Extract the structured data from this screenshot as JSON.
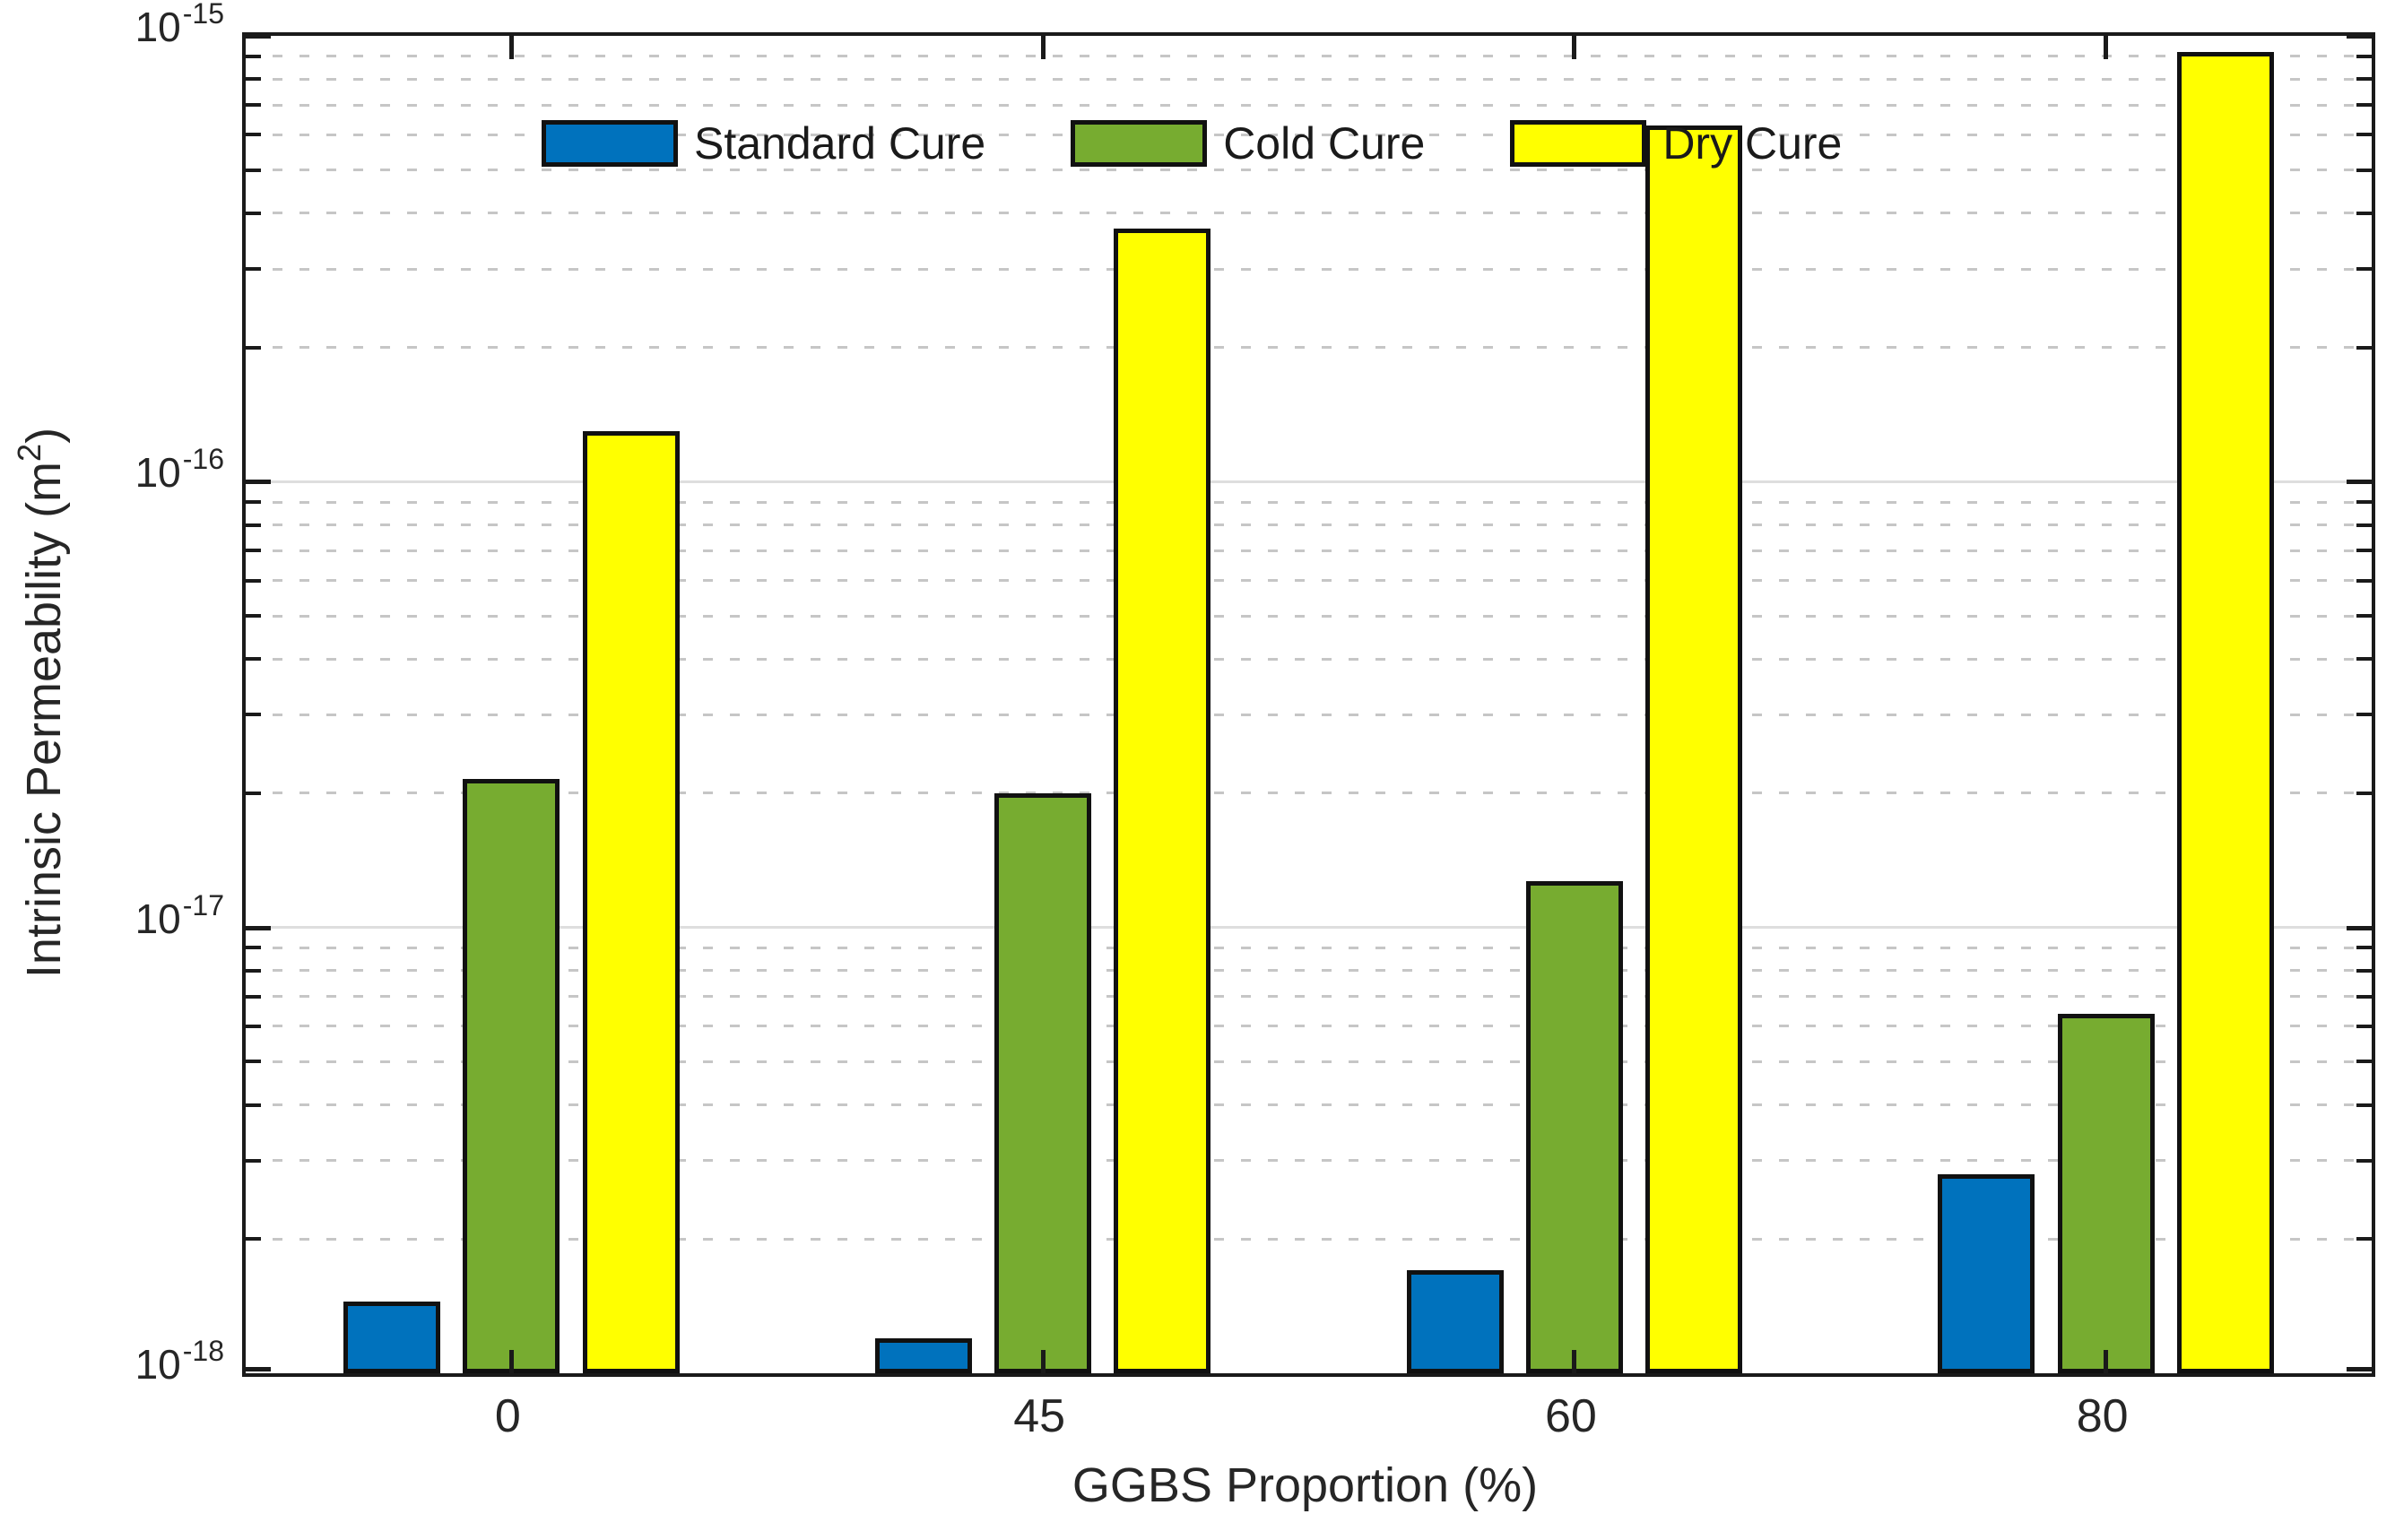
{
  "figure": {
    "xlabel": "GGBS Proportion (%)",
    "ylabel_pre": "Intrinsic Permeability (m",
    "ylabel_sup": "2",
    "ylabel_post": ")"
  },
  "colors": {
    "axis": "#1a1a1a",
    "text": "#262626",
    "bar_edge": "#111111",
    "grid_major": "#dedede",
    "grid_minor": "#c6c6c6",
    "background": "#ffffff",
    "standard_cure": "#0072BD",
    "cold_cure": "#77AC30",
    "dry_cure": "#FFFF00"
  },
  "chart_data": {
    "type": "bar",
    "title": "",
    "xlabel": "GGBS Proportion (%)",
    "ylabel": "Intrinsic Permeability (m^2)",
    "categories": [
      "0",
      "45",
      "60",
      "80"
    ],
    "series": [
      {
        "name": "Standard Cure",
        "color": "#0072BD",
        "values": [
          1.45e-18,
          1.2e-18,
          1.7e-18,
          2.8e-18
        ]
      },
      {
        "name": "Cold Cure",
        "color": "#77AC30",
        "values": [
          2.15e-17,
          2e-17,
          1.27e-17,
          6.4e-18
        ]
      },
      {
        "name": "Dry Cure",
        "color": "#FFFF00",
        "values": [
          1.3e-16,
          3.7e-16,
          6.3e-16,
          9.2e-16
        ]
      }
    ],
    "y_axis": {
      "scale": "log",
      "min": 1e-18,
      "max": 1e-15,
      "tick_label_base": "10",
      "tick_exponents": [
        -15,
        -16,
        -17,
        -18
      ],
      "minor_multiples": [
        2,
        3,
        4,
        5,
        6,
        7,
        8,
        9
      ]
    },
    "legend": {
      "position": "top-inside",
      "labels": [
        "Standard Cure",
        "Cold Cure",
        "Dry Cure"
      ]
    },
    "grid": {
      "y_major": "solid",
      "y_minor": "dashed",
      "x": "none"
    }
  }
}
